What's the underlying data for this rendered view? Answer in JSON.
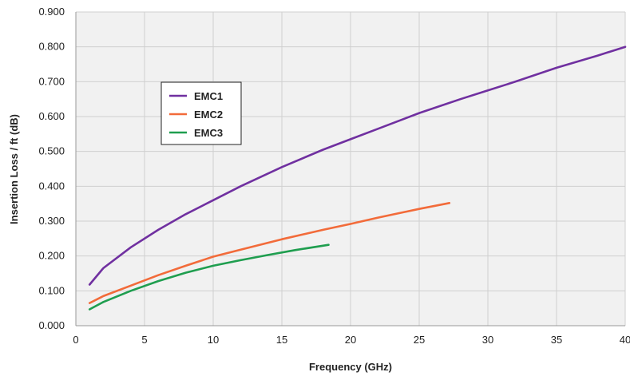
{
  "chart_data": {
    "type": "line",
    "title": "",
    "xlabel": "Frequency (GHz)",
    "ylabel": "Insertion Loss / ft (dB)",
    "xlim": [
      0,
      40
    ],
    "ylim": [
      0,
      0.9
    ],
    "xticks": [
      "0",
      "5",
      "10",
      "15",
      "20",
      "25",
      "30",
      "35",
      "40"
    ],
    "yticks": [
      "0.000",
      "0.100",
      "0.200",
      "0.300",
      "0.400",
      "0.500",
      "0.600",
      "0.700",
      "0.800",
      "0.900"
    ],
    "grid": true,
    "legend_position": "upper-left",
    "background": "#f1f1f1",
    "grid_color": "#cfcfcf",
    "series": [
      {
        "name": "EMC1",
        "color": "#7030a0",
        "x": [
          1,
          2,
          4,
          6,
          8,
          10,
          12,
          15,
          18,
          20,
          22,
          25,
          28,
          30,
          32,
          35,
          38,
          40
        ],
        "y": [
          0.118,
          0.165,
          0.225,
          0.275,
          0.32,
          0.36,
          0.4,
          0.455,
          0.505,
          0.535,
          0.565,
          0.61,
          0.65,
          0.675,
          0.7,
          0.74,
          0.775,
          0.8
        ]
      },
      {
        "name": "EMC2",
        "color": "#f26b3a",
        "x": [
          1,
          2,
          4,
          6,
          8,
          10,
          12,
          15,
          18,
          20,
          22,
          25,
          27.2
        ],
        "y": [
          0.065,
          0.085,
          0.115,
          0.145,
          0.172,
          0.198,
          0.218,
          0.248,
          0.275,
          0.292,
          0.31,
          0.335,
          0.352
        ]
      },
      {
        "name": "EMC3",
        "color": "#1f9e4f",
        "x": [
          1,
          2,
          4,
          6,
          8,
          10,
          12,
          14,
          16,
          18.4
        ],
        "y": [
          0.047,
          0.068,
          0.1,
          0.128,
          0.152,
          0.172,
          0.188,
          0.203,
          0.217,
          0.232
        ]
      }
    ]
  }
}
